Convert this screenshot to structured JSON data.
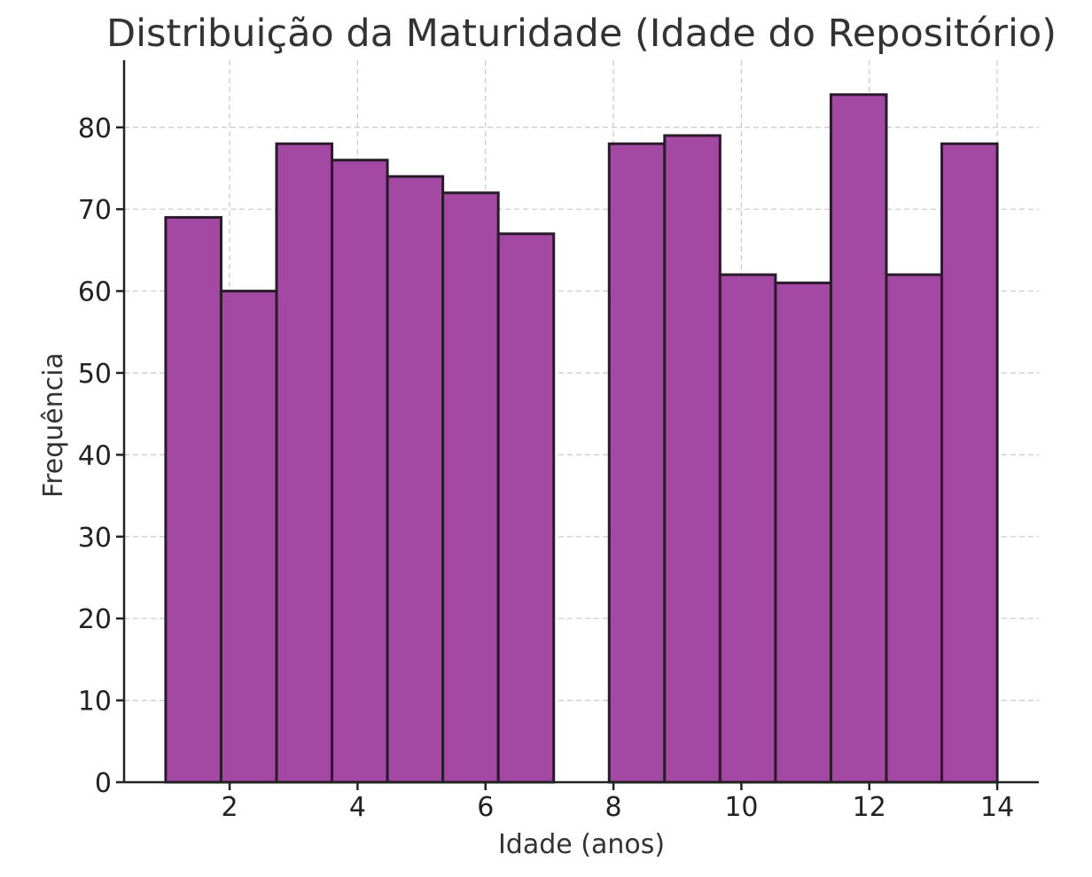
{
  "chart_data": {
    "type": "bar",
    "title": "Distribuição da Maturidade (Idade do Repositório)",
    "xlabel": "Idade (anos)",
    "ylabel": "Frequência",
    "xlim": [
      0.35,
      14.65
    ],
    "ylim": [
      0,
      88.2
    ],
    "x_ticks": [
      2,
      4,
      6,
      8,
      10,
      12,
      14
    ],
    "y_ticks": [
      0,
      10,
      20,
      30,
      40,
      50,
      60,
      70,
      80
    ],
    "grid": true,
    "bin_edges": [
      1,
      1.8667,
      2.7333,
      3.6,
      4.4667,
      5.3333,
      6.2,
      7.0667,
      7.9333,
      8.8,
      9.6667,
      10.5333,
      11.4,
      12.2667,
      13.1333,
      14
    ],
    "values": [
      69,
      60,
      78,
      76,
      74,
      72,
      67,
      0,
      78,
      79,
      62,
      61,
      84,
      62,
      78
    ],
    "colors": {
      "bar_fill": "#a349a4",
      "bar_edge": "#2a1a2a"
    }
  }
}
